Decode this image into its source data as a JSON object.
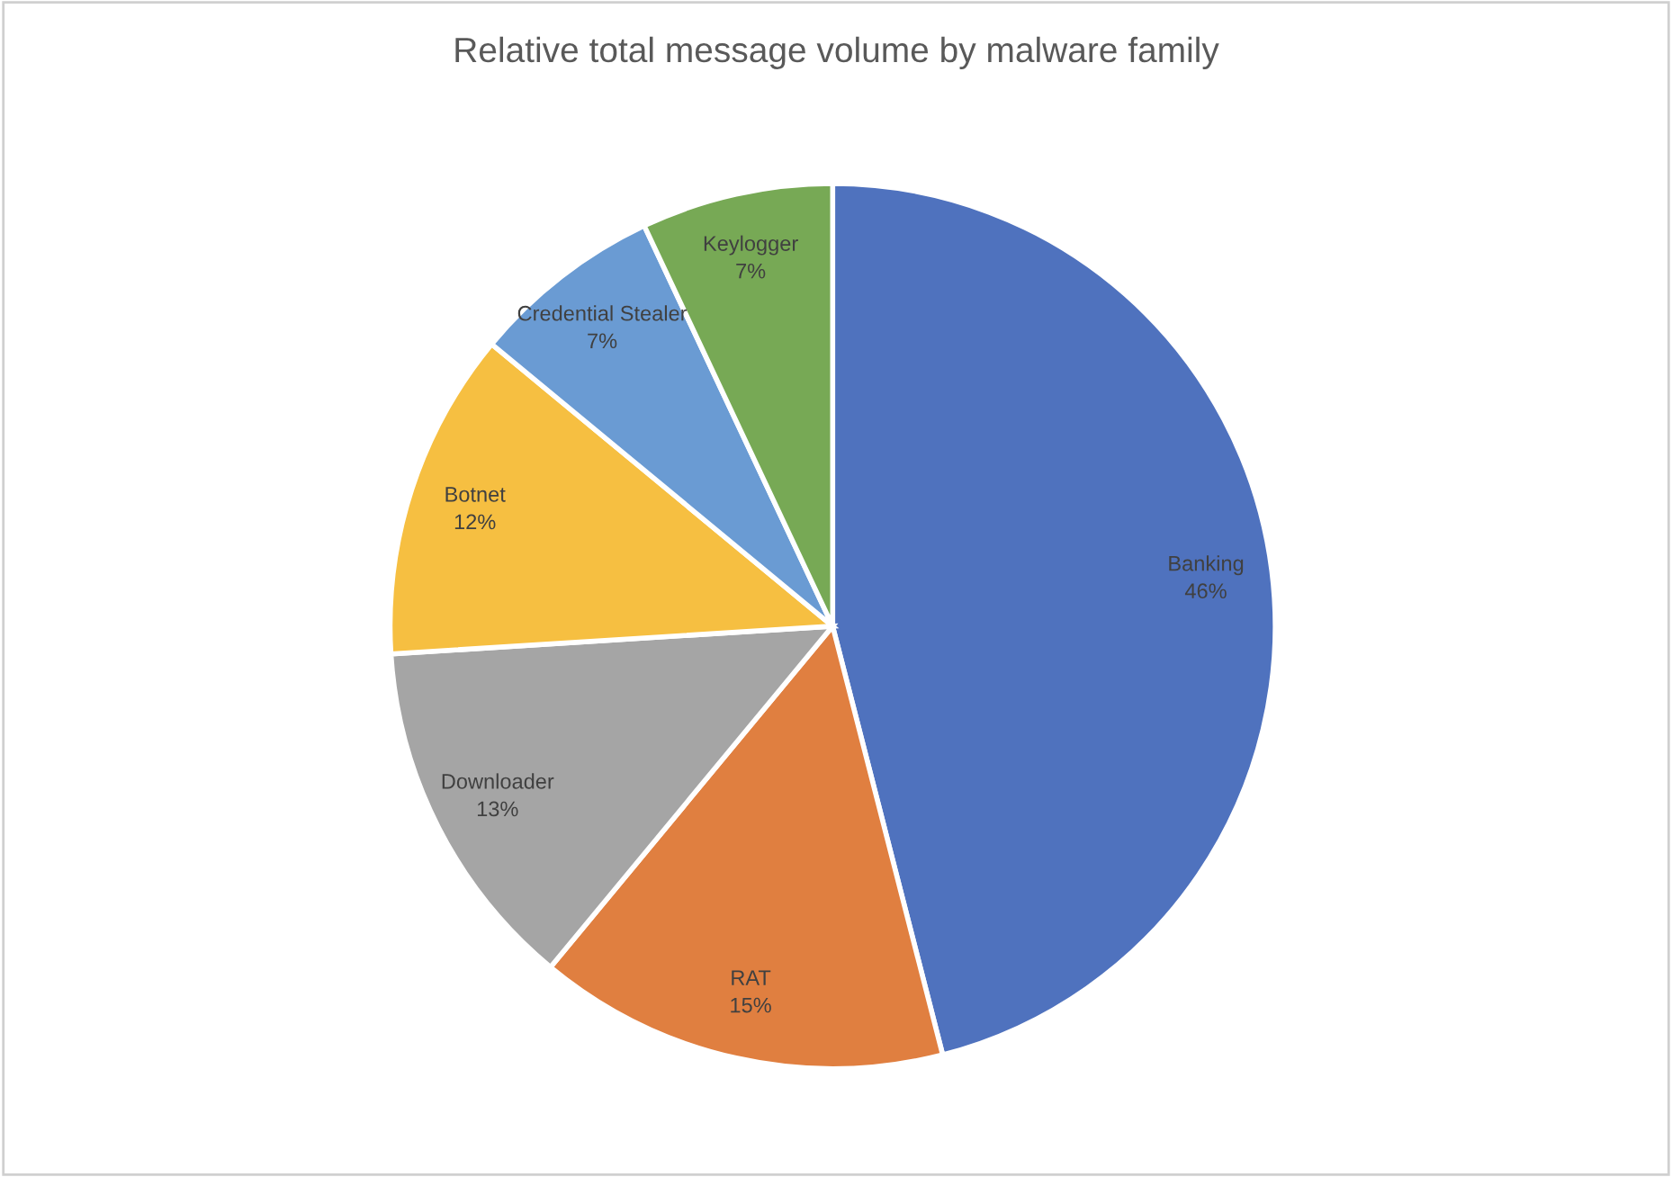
{
  "chart_data": {
    "type": "pie",
    "title": "Relative total message volume by malware family",
    "categories": [
      "Banking",
      "RAT",
      "Downloader",
      "Botnet",
      "Credential Stealer",
      "Keylogger"
    ],
    "values": [
      46,
      15,
      13,
      12,
      7,
      7
    ],
    "colors": [
      "#4f72be",
      "#e07f40",
      "#a5a5a5",
      "#f6bf41",
      "#6a9bd3",
      "#77a955"
    ],
    "value_labels": [
      "46%",
      "15%",
      "13%",
      "12%",
      "7%",
      "7%"
    ]
  }
}
